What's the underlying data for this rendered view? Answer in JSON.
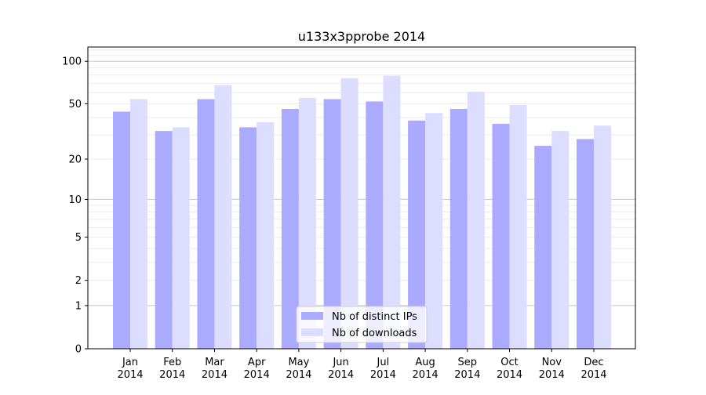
{
  "chart_data": {
    "type": "bar",
    "title": "u133x3pprobe 2014",
    "xlabel": "",
    "ylabel": "",
    "yscale": "symlog (log10(y+1))",
    "ylim": [
      0,
      126
    ],
    "yticks": [
      0,
      1,
      2,
      5,
      10,
      20,
      50,
      100
    ],
    "grid": true,
    "legend_position": "bottom-center",
    "categories": [
      "Jan\n2014",
      "Feb\n2014",
      "Mar\n2014",
      "Apr\n2014",
      "May\n2014",
      "Jun\n2014",
      "Jul\n2014",
      "Aug\n2014",
      "Sep\n2014",
      "Oct\n2014",
      "Nov\n2014",
      "Dec\n2014"
    ],
    "series": [
      {
        "name": "Nb of distinct IPs",
        "color": "#aaaaff",
        "values": [
          44,
          32,
          54,
          34,
          46,
          54,
          52,
          38,
          46,
          36,
          25,
          28
        ]
      },
      {
        "name": "Nb of downloads",
        "color": "#ddddff",
        "values": [
          54,
          34,
          68,
          37,
          55,
          76,
          79,
          43,
          61,
          49,
          32,
          35
        ]
      }
    ]
  }
}
